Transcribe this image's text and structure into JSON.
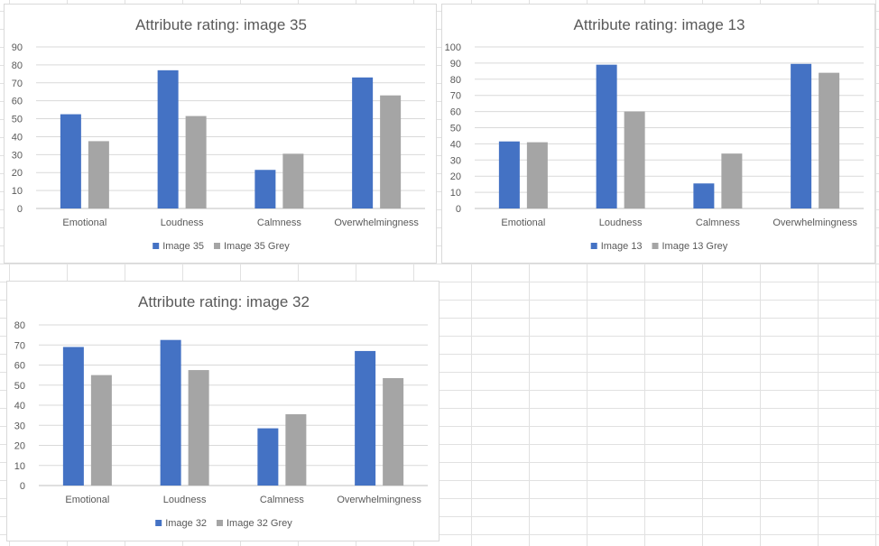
{
  "chart_data": [
    {
      "type": "bar",
      "title": "Attribute rating: image 35",
      "categories": [
        "Emotional",
        "Loudness",
        "Calmness",
        "Overwhelmingness"
      ],
      "ylim": [
        0,
        90
      ],
      "yticks": [
        0,
        10,
        20,
        30,
        40,
        50,
        60,
        70,
        80,
        90
      ],
      "grid": true,
      "legend_position": "bottom",
      "series": [
        {
          "name": "Image 35",
          "color": "#4472c4",
          "values": [
            52.5,
            77,
            21.5,
            73
          ]
        },
        {
          "name": "Image 35 Grey",
          "color": "#a5a5a5",
          "values": [
            37.5,
            51.5,
            30.5,
            63
          ]
        }
      ]
    },
    {
      "type": "bar",
      "title": "Attribute rating: image 13",
      "categories": [
        "Emotional",
        "Loudness",
        "Calmness",
        "Overwhelmingness"
      ],
      "ylim": [
        0,
        100
      ],
      "yticks": [
        0,
        10,
        20,
        30,
        40,
        50,
        60,
        70,
        80,
        90,
        100
      ],
      "grid": true,
      "legend_position": "bottom",
      "series": [
        {
          "name": "Image 13",
          "color": "#4472c4",
          "values": [
            41.5,
            89,
            15.5,
            89.5
          ]
        },
        {
          "name": "Image 13 Grey",
          "color": "#a5a5a5",
          "values": [
            41,
            60,
            34,
            84
          ]
        }
      ]
    },
    {
      "type": "bar",
      "title": "Attribute rating: image 32",
      "categories": [
        "Emotional",
        "Loudness",
        "Calmness",
        "Overwhelmingness"
      ],
      "ylim": [
        0,
        80
      ],
      "yticks": [
        0,
        10,
        20,
        30,
        40,
        50,
        60,
        70,
        80
      ],
      "grid": true,
      "legend_position": "bottom",
      "series": [
        {
          "name": "Image 32",
          "color": "#4472c4",
          "values": [
            69,
            72.5,
            28.5,
            67
          ]
        },
        {
          "name": "Image 32 Grey",
          "color": "#a5a5a5",
          "values": [
            55,
            57.5,
            35.5,
            53.5
          ]
        }
      ]
    }
  ]
}
